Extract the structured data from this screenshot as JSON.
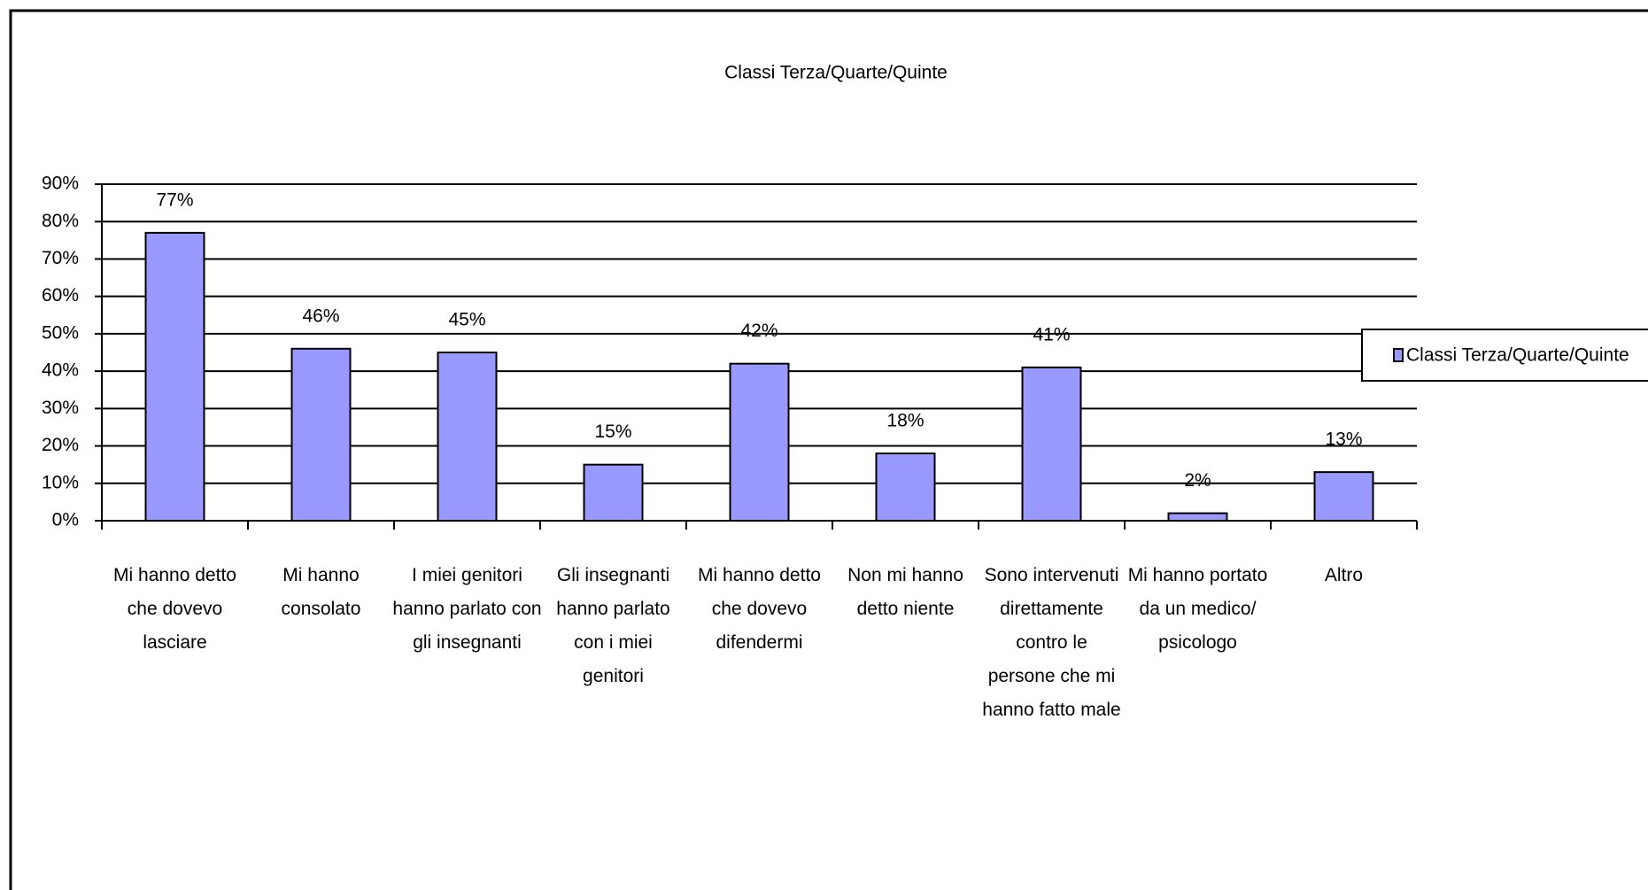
{
  "chart_data": {
    "type": "bar",
    "title": "Classi Terza/Quarte/Quinte",
    "categories": [
      "Mi hanno detto\nche dovevo\nlasciare",
      "Mi hanno\nconsolato",
      "I miei genitori\nhanno parlato con\ngli insegnanti",
      "Gli insegnanti\nhanno parlato\ncon i miei\ngenitori",
      "Mi hanno detto\nche dovevo\ndifendermi",
      "Non mi hanno\ndetto niente",
      "Sono intervenuti\ndirettamente\ncontro le\npersone che mi\nhanno fatto male",
      "Mi hanno portato\nda un medico/\npsicologo",
      "Altro"
    ],
    "series": [
      {
        "name": "Classi Terza/Quarte/Quinte",
        "color": "#9999ff",
        "values": [
          77,
          46,
          45,
          15,
          42,
          18,
          41,
          2,
          13
        ],
        "value_labels": [
          "77%",
          "46%",
          "45%",
          "15%",
          "42%",
          "18%",
          "41%",
          "2%",
          "13%"
        ]
      }
    ],
    "ylim": [
      0,
      90
    ],
    "yticks": [
      {
        "value": 0,
        "label": "0%"
      },
      {
        "value": 10,
        "label": "10%"
      },
      {
        "value": 20,
        "label": "20%"
      },
      {
        "value": 30,
        "label": "30%"
      },
      {
        "value": 40,
        "label": "40%"
      },
      {
        "value": 50,
        "label": "50%"
      },
      {
        "value": 60,
        "label": "60%"
      },
      {
        "value": 70,
        "label": "70%"
      },
      {
        "value": 80,
        "label": "80%"
      },
      {
        "value": 90,
        "label": "90%"
      }
    ],
    "grid": true,
    "legend": "right"
  }
}
